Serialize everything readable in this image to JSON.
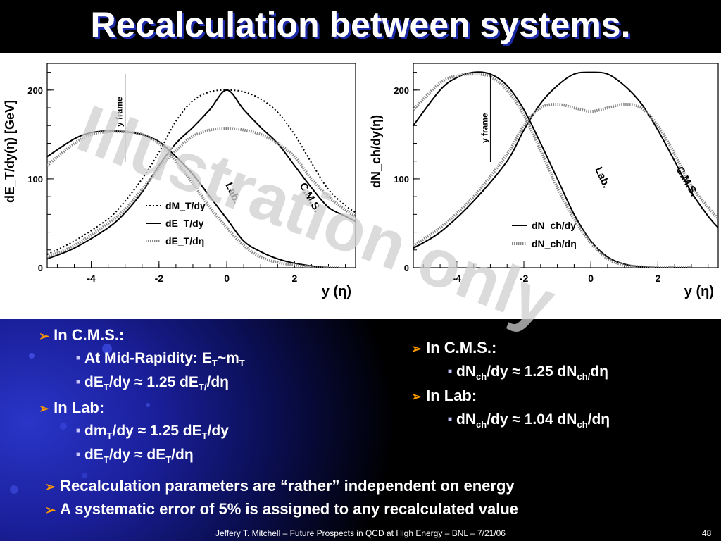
{
  "slide": {
    "title": "Recalculation between systems.",
    "watermark": "Illustration only",
    "footer": "Jeffery T. Mitchell – Future Prospects in QCD at High Energy – BNL – 7/21/06",
    "page_number": "48",
    "left_bullets": {
      "cms": "In C.M.S.:",
      "cms_sub1": "At Mid-Rapidity: E",
      "cms_sub1_sub": "T",
      "cms_sub1_mid": "~m",
      "cms_sub1_sub2": "T",
      "cms_sub2_a": "dE",
      "cms_sub2_b": "/dy ≈ 1.25 dE",
      "cms_sub2_c": "/dη",
      "lab": "In Lab:",
      "lab_sub1_a": "dm",
      "lab_sub1_b": "/dy ≈ 1.25 dE",
      "lab_sub1_c": "/dy",
      "lab_sub2_a": "dE",
      "lab_sub2_b": "/dy ≈ dE",
      "lab_sub2_c": "/dη",
      "sub_T": "T",
      "sub_T2": "T/"
    },
    "right_bullets": {
      "cms": "In C.M.S.:",
      "cms_sub_a": "dN",
      "cms_sub_b": "/dy ≈ 1.25 dN",
      "cms_sub_c": "dη",
      "lab": "In Lab:",
      "lab_sub_a": "dN",
      "lab_sub_b": "/dy ≈ 1.04 dN",
      "lab_sub_c": "/dη",
      "sub_ch": "ch",
      "sub_ch_slash": "ch/"
    },
    "bottom_bullets": [
      "Recalculation parameters are “rather” independent on energy",
      "A systematic error of 5% is assigned to any recalculated value"
    ],
    "colors": {
      "arrow": "#ff9a00",
      "text": "#ffffff",
      "title_shadow": "#1c2aa8"
    }
  },
  "chart_data": [
    {
      "type": "line",
      "ylabel": "dE_T/dy(η) [GeV]",
      "xlabel": "y (η)",
      "xlim": [
        -5.3,
        3.8
      ],
      "ylim": [
        0,
        230
      ],
      "x_ticks": [
        -4,
        -2,
        0,
        2
      ],
      "y_ticks": [
        0,
        100,
        200
      ],
      "annotations": {
        "frame": "y frame",
        "lab": "Lab.",
        "cms": "C.M.S."
      },
      "legend": [
        "dM_T/dy",
        "dE_T/dy",
        "dE_T/dη"
      ],
      "series": [
        {
          "name": "dM_T/dy",
          "style": "dotted",
          "x": [
            -5.3,
            -4.5,
            -3.5,
            -3,
            -2.5,
            -2,
            -1.5,
            -1,
            -0.5,
            0,
            0.5,
            1,
            1.5,
            2,
            2.5,
            3,
            3.5,
            3.8
          ],
          "y": [
            15,
            30,
            55,
            75,
            100,
            130,
            165,
            188,
            198,
            200,
            198,
            190,
            175,
            150,
            118,
            88,
            70,
            62
          ]
        },
        {
          "name": "dE_T/dy C.M.S.",
          "style": "solid",
          "x": [
            -5.3,
            -4.5,
            -3.5,
            -3,
            -2.5,
            -2,
            -1.5,
            -1,
            -0.5,
            0,
            0.5,
            1,
            1.5,
            2,
            2.5,
            3,
            3.5,
            3.8
          ],
          "y": [
            10,
            22,
            45,
            62,
            85,
            115,
            140,
            158,
            178,
            200,
            178,
            158,
            140,
            115,
            90,
            68,
            58,
            52
          ]
        },
        {
          "name": "dE_T/dη C.M.S.",
          "style": "cross",
          "x": [
            -5.3,
            -4.5,
            -3.5,
            -3,
            -2.5,
            -2,
            -1.5,
            -1,
            -0.5,
            0,
            0.5,
            1,
            1.5,
            2,
            2.5,
            3,
            3.5,
            3.8
          ],
          "y": [
            12,
            25,
            50,
            66,
            88,
            112,
            132,
            148,
            155,
            157,
            155,
            150,
            140,
            125,
            100,
            80,
            65,
            58
          ]
        },
        {
          "name": "dE_T/dy Lab.",
          "style": "solid",
          "x": [
            -5.3,
            -4.5,
            -4,
            -3.5,
            -3,
            -2.5,
            -2,
            -1.5,
            -1,
            -0.5,
            0,
            0.5,
            1,
            1.5,
            2,
            2.5,
            3,
            3.3
          ],
          "y": [
            125,
            145,
            152,
            154,
            153,
            150,
            142,
            125,
            105,
            80,
            55,
            30,
            18,
            10,
            5,
            2,
            0,
            0
          ]
        },
        {
          "name": "dE_T/dη Lab.",
          "style": "cross",
          "x": [
            -5.3,
            -4.5,
            -4,
            -3.5,
            -3,
            -2.5,
            -2,
            -1.5,
            -1,
            -0.5,
            0,
            0.5,
            1,
            1.5,
            2,
            2.5,
            3,
            3.3
          ],
          "y": [
            115,
            140,
            150,
            153,
            153,
            150,
            140,
            120,
            95,
            68,
            45,
            25,
            12,
            6,
            3,
            1,
            0,
            0
          ]
        }
      ]
    },
    {
      "type": "line",
      "ylabel": "dN_ch/dy(η)",
      "xlabel": "y (η)",
      "xlim": [
        -5.3,
        3.8
      ],
      "ylim": [
        0,
        230
      ],
      "x_ticks": [
        -4,
        -2,
        0,
        2
      ],
      "y_ticks": [
        0,
        100,
        200
      ],
      "annotations": {
        "frame": "y frame",
        "lab": "Lab.",
        "cms": "C.M.S."
      },
      "legend": [
        "dN_ch/dy",
        "dN_ch/dη"
      ],
      "series": [
        {
          "name": "dN_ch/dy C.M.S.",
          "style": "solid",
          "x": [
            -5.3,
            -4.5,
            -3.5,
            -2.5,
            -2,
            -1.5,
            -1,
            -0.5,
            0,
            0.5,
            1,
            1.5,
            2,
            2.5,
            3,
            3.5,
            3.8
          ],
          "y": [
            22,
            40,
            75,
            120,
            155,
            185,
            205,
            218,
            220,
            218,
            205,
            185,
            155,
            120,
            85,
            58,
            45
          ]
        },
        {
          "name": "dN_ch/dη C.M.S.",
          "style": "cross",
          "x": [
            -5.3,
            -4.5,
            -3.5,
            -2.5,
            -2,
            -1.5,
            -1,
            -0.5,
            0,
            0.5,
            1,
            1.5,
            2,
            2.5,
            3,
            3.5,
            3.8
          ],
          "y": [
            25,
            45,
            80,
            128,
            160,
            180,
            184,
            180,
            176,
            180,
            184,
            180,
            160,
            128,
            92,
            68,
            55
          ]
        },
        {
          "name": "dN_ch/dy Lab.",
          "style": "solid",
          "x": [
            -5.3,
            -4.5,
            -4,
            -3.5,
            -3,
            -2.5,
            -2,
            -1.5,
            -1,
            -0.5,
            0,
            0.5,
            1,
            1.5,
            2,
            2.5,
            3
          ],
          "y": [
            160,
            200,
            214,
            220,
            218,
            205,
            178,
            140,
            100,
            60,
            30,
            12,
            4,
            1,
            0,
            0,
            0
          ]
        },
        {
          "name": "dN_ch/dη Lab.",
          "style": "cross",
          "x": [
            -5.3,
            -4.5,
            -4,
            -3.5,
            -3,
            -2.5,
            -2,
            -1.5,
            -1,
            -0.5,
            0,
            0.5,
            1,
            1.5,
            2,
            2.5,
            3
          ],
          "y": [
            178,
            208,
            216,
            218,
            215,
            200,
            172,
            132,
            90,
            55,
            28,
            10,
            3,
            1,
            0,
            0,
            0
          ]
        }
      ]
    }
  ]
}
